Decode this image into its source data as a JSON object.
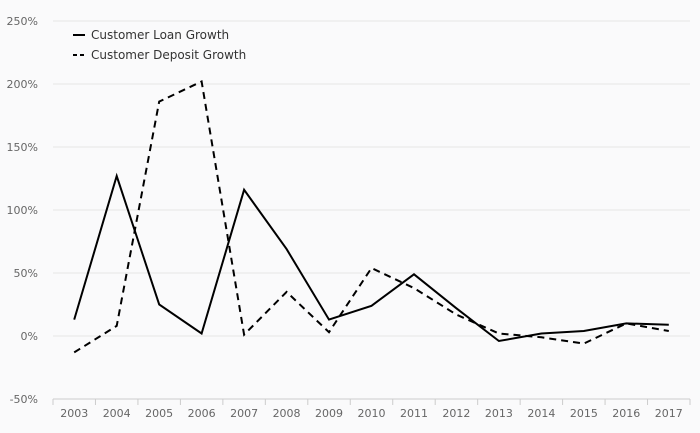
{
  "chart_data": {
    "type": "line",
    "title": "",
    "xlabel": "",
    "ylabel": "",
    "categories": [
      "2003",
      "2004",
      "2005",
      "2006",
      "2007",
      "2008",
      "2009",
      "2010",
      "2011",
      "2012",
      "2013",
      "2014",
      "2015",
      "2016",
      "2017"
    ],
    "ylim": [
      -50,
      250
    ],
    "yticks": [
      -50,
      0,
      50,
      100,
      150,
      200,
      250
    ],
    "ytick_labels": [
      "-50%",
      "0%",
      "50%",
      "100%",
      "150%",
      "200%",
      "250%"
    ],
    "grid": true,
    "legend_position": "top-left",
    "series": [
      {
        "name": "Customer Loan Growth",
        "style": "solid",
        "color": "#000000",
        "values": [
          13,
          127,
          25,
          2,
          116,
          69,
          13,
          24,
          49,
          22,
          -4,
          2,
          4,
          10,
          9
        ]
      },
      {
        "name": "Customer Deposit Growth",
        "style": "dashed",
        "color": "#000000",
        "values": [
          -13,
          8,
          186,
          202,
          1,
          35,
          3,
          54,
          38,
          17,
          2,
          -1,
          -6,
          10,
          4
        ]
      }
    ]
  }
}
